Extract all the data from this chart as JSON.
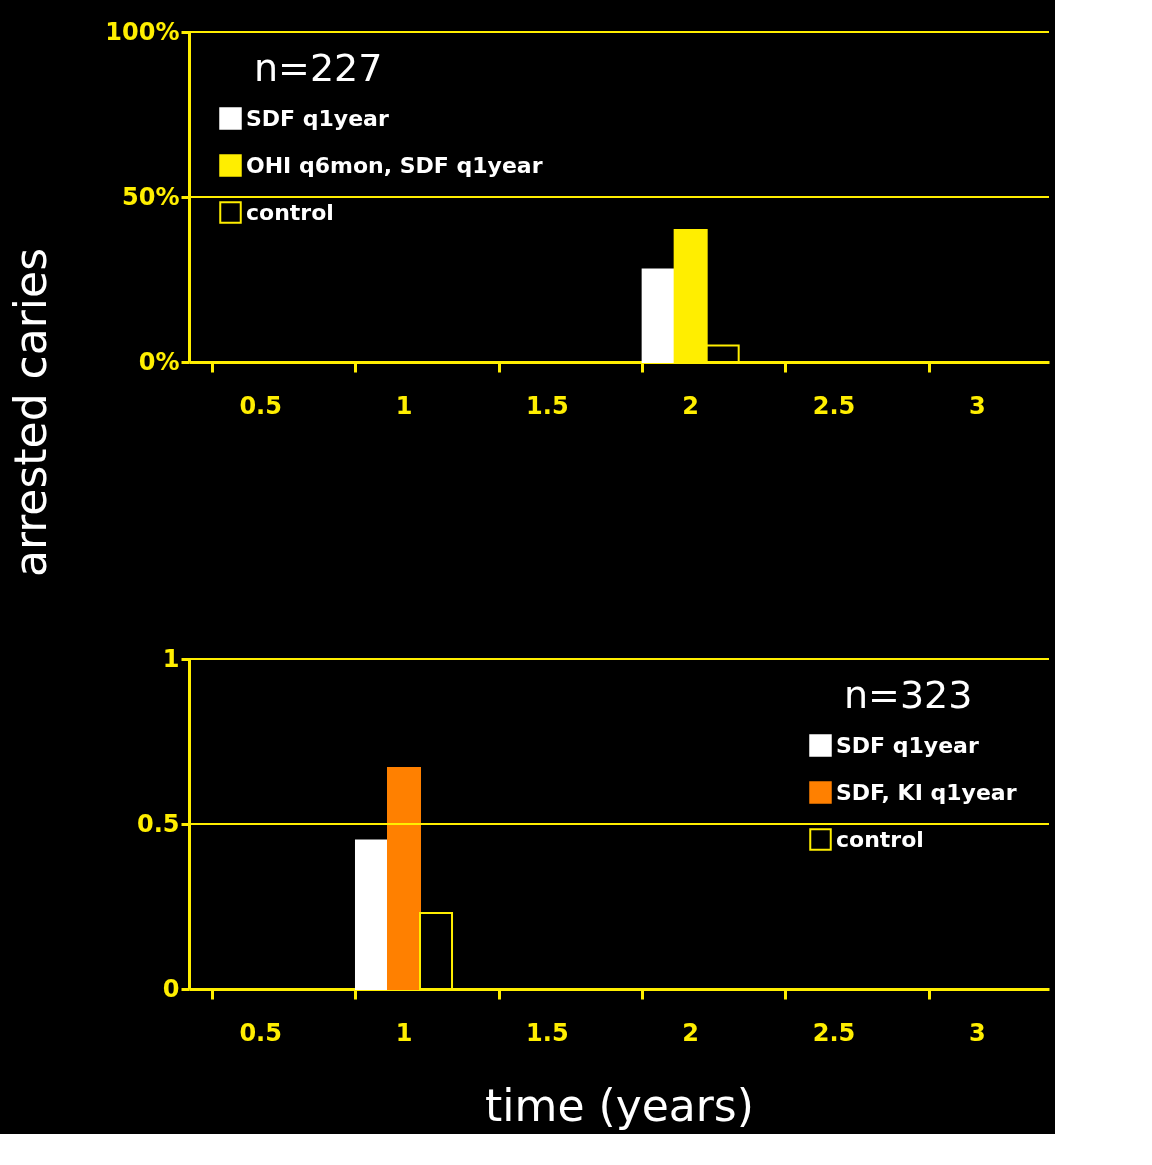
{
  "chart_data": [
    {
      "type": "bar",
      "ylabel": "arrested caries",
      "categories": [
        "0.5",
        "1",
        "1.5",
        "2",
        "2.5",
        "3"
      ],
      "series": [
        {
          "name": "SDF q1year",
          "color": "#ffffff",
          "values": [
            null,
            null,
            null,
            0.28,
            null,
            null
          ]
        },
        {
          "name": "OHI q6mon, SDF q1year",
          "color": "#ffee00",
          "values": [
            null,
            null,
            null,
            0.4,
            null,
            null
          ]
        },
        {
          "name": "control",
          "color": "#000000",
          "values": [
            null,
            null,
            null,
            0.05,
            null,
            null
          ]
        }
      ],
      "ylim": [
        0,
        1
      ],
      "yticks": [
        {
          "value": 0,
          "label": "0%"
        },
        {
          "value": 0.5,
          "label": "50%"
        },
        {
          "value": 1,
          "label": "100%"
        }
      ],
      "ref_lines": [
        {
          "axis": "y",
          "value": 0.5
        },
        {
          "axis": "y",
          "value": 1
        }
      ],
      "legend": "top left",
      "annotations": [
        "n=227"
      ]
    },
    {
      "type": "bar",
      "xlabel": "time (years)",
      "categories": [
        "0.5",
        "1",
        "1.5",
        "2",
        "2.5",
        "3"
      ],
      "series": [
        {
          "name": "SDF q1year",
          "color": "#ffffff",
          "values": [
            null,
            0.45,
            null,
            null,
            null,
            null
          ]
        },
        {
          "name": "SDF, KI q1year",
          "color": "#ff8000",
          "values": [
            null,
            0.67,
            null,
            null,
            null,
            null
          ]
        },
        {
          "name": "control",
          "color": "#000000",
          "values": [
            null,
            0.23,
            null,
            null,
            null,
            null
          ]
        }
      ],
      "ylim": [
        0,
        1
      ],
      "yticks": [
        0,
        0.5,
        1
      ],
      "ref_lines": [
        {
          "axis": "y",
          "value": 0.5
        },
        {
          "axis": "y",
          "value": 1
        }
      ],
      "legend": "top right",
      "annotations": [
        "n=323"
      ]
    }
  ]
}
